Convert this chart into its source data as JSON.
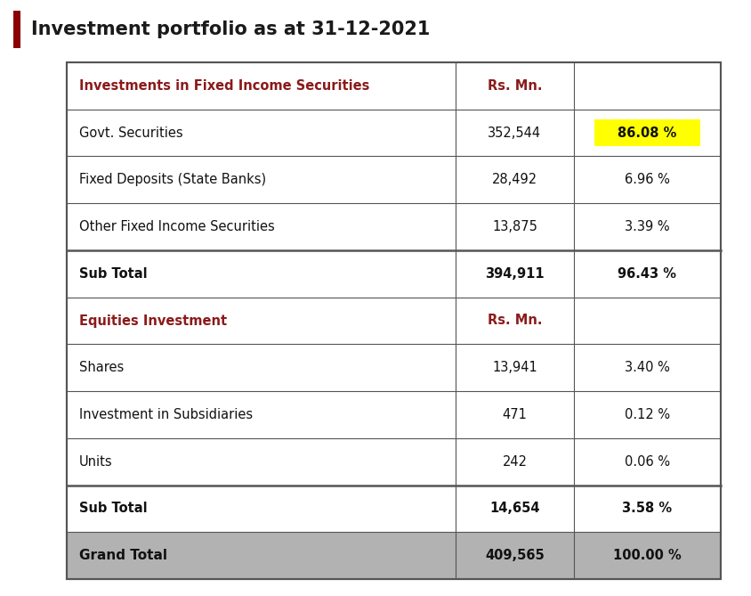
{
  "title": "Investment portfolio as at 31-12-2021",
  "title_color": "#1a1a1a",
  "accent_bar_color": "#8B0000",
  "header_color": "#8B1A1A",
  "background_color": "#ffffff",
  "table_border_color": "#555555",
  "grand_total_bg": "#b2b2b2",
  "yellow_highlight": "#ffff00",
  "rows": [
    {
      "label": "Investments in Fixed Income Securities",
      "value": "Rs. Mn.",
      "pct": "",
      "bold": false,
      "section_header": true,
      "highlight_pct": false,
      "grand_total": false
    },
    {
      "label": "Govt. Securities",
      "value": "352,544",
      "pct": "86.08 %",
      "bold": false,
      "section_header": false,
      "highlight_pct": true,
      "grand_total": false
    },
    {
      "label": "Fixed Deposits (State Banks)",
      "value": "28,492",
      "pct": "6.96 %",
      "bold": false,
      "section_header": false,
      "highlight_pct": false,
      "grand_total": false
    },
    {
      "label": "Other Fixed Income Securities",
      "value": "13,875",
      "pct": "3.39 %",
      "bold": false,
      "section_header": false,
      "highlight_pct": false,
      "grand_total": false
    },
    {
      "label": "Sub Total",
      "value": "394,911",
      "pct": "96.43 %",
      "bold": true,
      "section_header": false,
      "highlight_pct": false,
      "grand_total": false
    },
    {
      "label": "Equities Investment",
      "value": "Rs. Mn.",
      "pct": "",
      "bold": false,
      "section_header": true,
      "highlight_pct": false,
      "grand_total": false
    },
    {
      "label": "Shares",
      "value": "13,941",
      "pct": "3.40 %",
      "bold": false,
      "section_header": false,
      "highlight_pct": false,
      "grand_total": false
    },
    {
      "label": "Investment in Subsidiaries",
      "value": "471",
      "pct": "0.12 %",
      "bold": false,
      "section_header": false,
      "highlight_pct": false,
      "grand_total": false
    },
    {
      "label": "Units",
      "value": "242",
      "pct": "0.06 %",
      "bold": false,
      "section_header": false,
      "highlight_pct": false,
      "grand_total": false
    },
    {
      "label": "Sub Total",
      "value": "14,654",
      "pct": "3.58 %",
      "bold": true,
      "section_header": false,
      "highlight_pct": false,
      "grand_total": false
    },
    {
      "label": "Grand Total",
      "value": "409,565",
      "pct": "100.00 %",
      "bold": true,
      "section_header": false,
      "highlight_pct": false,
      "grand_total": true
    }
  ],
  "section_divider_after": [
    4,
    9
  ],
  "figsize": [
    8.44,
    6.69
  ],
  "dpi": 100
}
